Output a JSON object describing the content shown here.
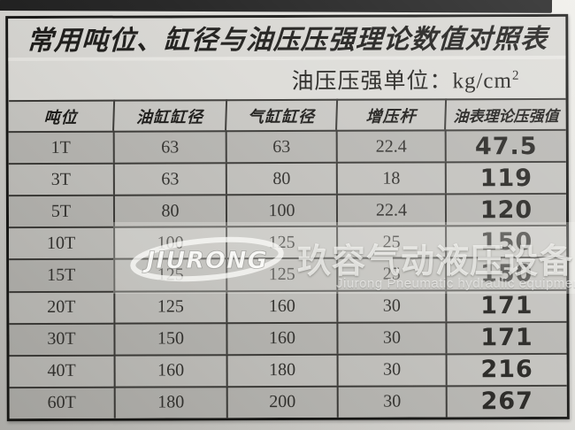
{
  "page": {
    "title": "常用吨位、缸径与油压压强理论数值对照表",
    "subtitle_label": "油压压强单位：kg/cm",
    "subtitle_superscript": "2"
  },
  "table": {
    "headers": [
      "吨位",
      "油缸缸径",
      "气缸缸径",
      "增压杆",
      "油表理论压强值"
    ],
    "rows": [
      [
        "1T",
        "63",
        "63",
        "22.4",
        "47.5"
      ],
      [
        "3T",
        "63",
        "80",
        "18",
        "119"
      ],
      [
        "5T",
        "80",
        "100",
        "22.4",
        "120"
      ],
      [
        "10T",
        "100",
        "125",
        "25",
        "150"
      ],
      [
        "15T",
        "125",
        "125",
        "25",
        "150"
      ],
      [
        "20T",
        "125",
        "160",
        "30",
        "171"
      ],
      [
        "30T",
        "150",
        "160",
        "30",
        "171"
      ],
      [
        "40T",
        "160",
        "180",
        "30",
        "216"
      ],
      [
        "60T",
        "180",
        "200",
        "30",
        "267"
      ]
    ]
  },
  "watermark": {
    "logo_text": "JIURONG",
    "cn_text": "玖容气动液压设备",
    "en_text": "Jiurong Pneumatic hydraulic equipment"
  },
  "colors": {
    "top_bar": "#1e1e1e",
    "title_band": "#d7d6d2",
    "subtitle_band": "#dcdbd7",
    "header_row": "#c8c7c3",
    "row_dark": "#b7b6b2",
    "row_light": "#c2c1bd",
    "grid_line": "#3c3b38",
    "value_emphasis": "#262522"
  }
}
